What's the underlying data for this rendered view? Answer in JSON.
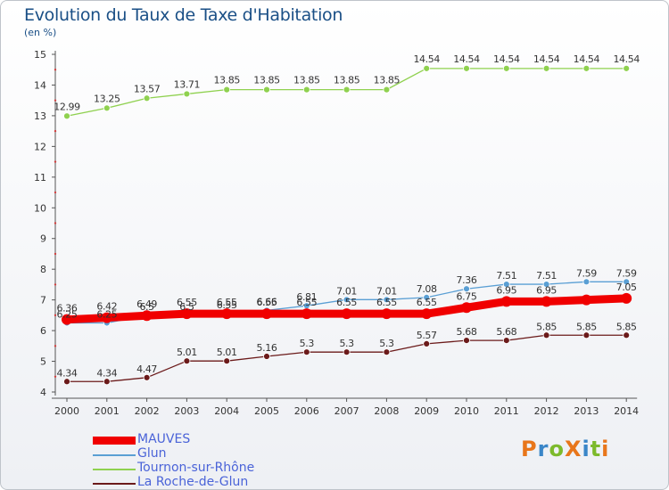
{
  "header": {
    "title": "Evolution du Taux de Taxe d'Habitation",
    "unit": "(en %)"
  },
  "logo": {
    "text": "ProXiti",
    "colors": [
      "#e8761b",
      "#3a86c8",
      "#7dba2c",
      "#e8761b",
      "#3a86c8",
      "#7dba2c",
      "#e8761b"
    ]
  },
  "chart_data": {
    "type": "line",
    "title": "Evolution du Taux de Taxe d'Habitation",
    "ylabel": "(en %)",
    "xlabel": "",
    "x": [
      "2000",
      "2001",
      "2002",
      "2003",
      "2004",
      "2005",
      "2006",
      "2007",
      "2008",
      "2009",
      "2010",
      "2011",
      "2012",
      "2013",
      "2014"
    ],
    "ylim": [
      4,
      15
    ],
    "yticks": [
      4,
      5,
      6,
      7,
      8,
      9,
      10,
      11,
      12,
      13,
      14,
      15
    ],
    "grid": false,
    "legend_position": "bottom-left",
    "series": [
      {
        "name": "MAUVES",
        "color": "#f00000",
        "values": [
          6.36,
          6.42,
          6.49,
          6.55,
          6.55,
          6.55,
          6.55,
          6.55,
          6.55,
          6.55,
          6.75,
          6.95,
          6.95,
          7.0,
          7.05
        ],
        "labels": [
          "6.36",
          "6.42",
          "6.49",
          "6.55",
          "6.55",
          "6.55",
          "6.55",
          "6.55",
          "6.55",
          "6.55",
          "6.75",
          "6.95",
          "6.95",
          "",
          "7.05"
        ]
      },
      {
        "name": "Glun",
        "color": "#5a9fd4",
        "values": [
          6.25,
          6.25,
          6.5,
          6.5,
          6.55,
          6.66,
          6.81,
          7.01,
          7.01,
          7.08,
          7.36,
          7.51,
          7.51,
          7.59,
          7.59
        ],
        "labels": [
          "6.25",
          "6.25",
          "6.5",
          "6.5",
          "6.55",
          "6.66",
          "6.81",
          "7.01",
          "7.01",
          "7.08",
          "7.36",
          "7.51",
          "7.51",
          "7.59",
          "7.59"
        ]
      },
      {
        "name": "Tournon-sur-Rhône",
        "color": "#8fd14f",
        "values": [
          12.99,
          13.25,
          13.57,
          13.71,
          13.85,
          13.85,
          13.85,
          13.85,
          13.85,
          14.54,
          14.54,
          14.54,
          14.54,
          14.54,
          14.54
        ],
        "labels": [
          "12.99",
          "13.25",
          "13.57",
          "13.71",
          "13.85",
          "13.85",
          "13.85",
          "13.85",
          "13.85",
          "14.54",
          "14.54",
          "14.54",
          "14.54",
          "14.54",
          "14.54"
        ]
      },
      {
        "name": "La Roche-de-Glun",
        "color": "#6b1a1a",
        "values": [
          4.34,
          4.34,
          4.47,
          5.01,
          5.01,
          5.16,
          5.3,
          5.3,
          5.3,
          5.57,
          5.68,
          5.68,
          5.85,
          5.85,
          5.85
        ],
        "labels": [
          "4.34",
          "4.34",
          "4.47",
          "5.01",
          "5.01",
          "5.16",
          "5.3",
          "5.3",
          "5.3",
          "5.57",
          "5.68",
          "5.68",
          "5.85",
          "5.85",
          "5.85"
        ]
      }
    ]
  }
}
